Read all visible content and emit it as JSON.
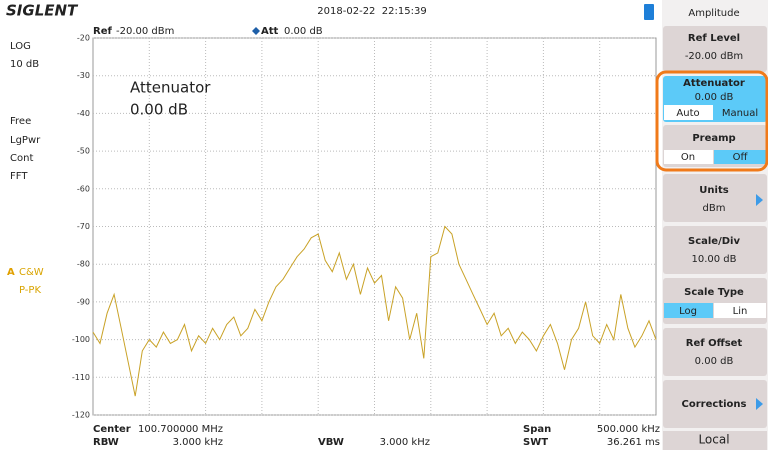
{
  "header": {
    "brand": "SIGLENT",
    "datetime": "2018-02-22  22:15:39"
  },
  "status": {
    "lines": [
      "LOG",
      "10 dB",
      "Free",
      "LgPwr",
      "Cont",
      "FFT"
    ],
    "trace_id": "A",
    "trace_mode": "C&W",
    "detector": "P-PK"
  },
  "plot_header": {
    "ref_label": "Ref",
    "ref_value": "-20.00 dBm",
    "att_label": "Att",
    "att_value": "0.00 dB"
  },
  "annotation": {
    "title": "Attenuator",
    "value": "0.00 dB"
  },
  "footer": {
    "center_label": "Center",
    "center_value": "100.700000 MHz",
    "rbw_label": "RBW",
    "rbw_value": "3.000 kHz",
    "vbw_label": "VBW",
    "vbw_value": "3.000 kHz",
    "span_label": "Span",
    "span_value": "500.000 kHz",
    "swt_label": "SWT",
    "swt_value": "36.261 ms"
  },
  "menu": {
    "title": "Amplitude",
    "ref_level": {
      "label": "Ref Level",
      "value": "-20.00 dBm"
    },
    "attenuator": {
      "label": "Attenuator",
      "value": "0.00 dB",
      "options": [
        "Auto",
        "Manual"
      ]
    },
    "preamp": {
      "label": "Preamp",
      "options": [
        "On",
        "Off"
      ]
    },
    "units": {
      "label": "Units",
      "value": "dBm"
    },
    "scale_div": {
      "label": "Scale/Div",
      "value": "10.00 dB"
    },
    "scale_type": {
      "label": "Scale Type",
      "options": [
        "Log",
        "Lin"
      ]
    },
    "ref_offset": {
      "label": "Ref Offset",
      "value": "0.00 dB"
    },
    "corrections": {
      "label": "Corrections"
    },
    "local": "Local"
  },
  "chart_data": {
    "type": "line",
    "color": "#c9a227",
    "grid": true,
    "ylim": [
      -120,
      -20
    ],
    "yticks": [
      -20,
      -30,
      -40,
      -50,
      -60,
      -70,
      -80,
      -90,
      -100,
      -110,
      -120
    ],
    "values": [
      -98,
      -101,
      -93,
      -88,
      -97,
      -106,
      -115,
      -103,
      -100,
      -102,
      -98,
      -101,
      -100,
      -96,
      -103,
      -99,
      -101,
      -97,
      -100,
      -96,
      -94,
      -99,
      -97,
      -92,
      -95,
      -90,
      -86,
      -84,
      -81,
      -78,
      -76,
      -73,
      -72,
      -79,
      -82,
      -77,
      -84,
      -80,
      -88,
      -81,
      -85,
      -83,
      -95,
      -86,
      -89,
      -100,
      -93,
      -105,
      -78,
      -77,
      -70,
      -72,
      -80,
      -84,
      -88,
      -92,
      -96,
      -93,
      -99,
      -97,
      -101,
      -98,
      -100,
      -103,
      -99,
      -96,
      -101,
      -108,
      -100,
      -97,
      -90,
      -99,
      -101,
      -96,
      -100,
      -88,
      -97,
      -102,
      -99,
      -95,
      -100
    ]
  }
}
